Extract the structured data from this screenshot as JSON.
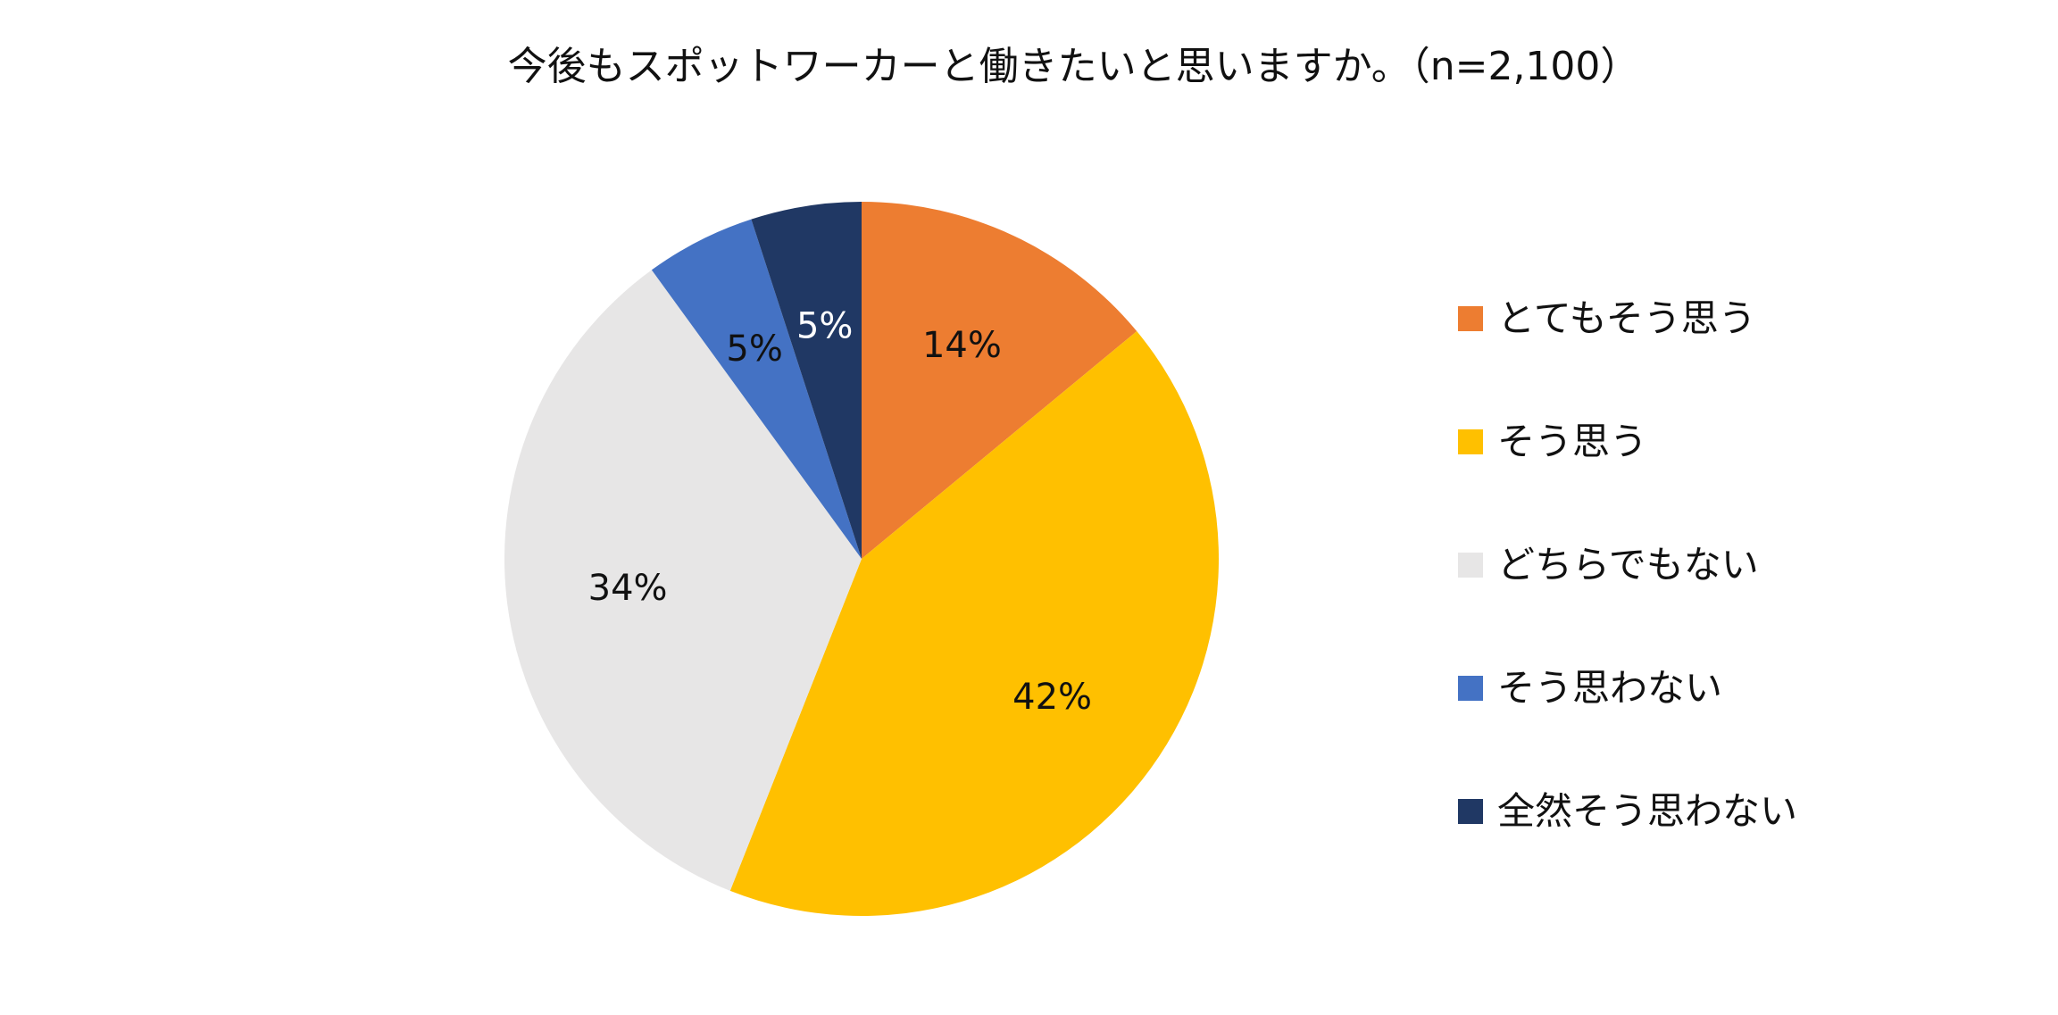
{
  "chart_data": {
    "type": "pie",
    "title": "今後もスポットワーカーと働きたいと思いますか。（n=2,100）",
    "start_angle_deg": 0,
    "direction": "clockwise",
    "legend_position": "right",
    "slices": [
      {
        "label": "とてもそう思う",
        "value": 14,
        "display": "14%",
        "color": "#ED7D31",
        "label_color": "#111111"
      },
      {
        "label": "そう思う",
        "value": 42,
        "display": "42%",
        "color": "#FFC000",
        "label_color": "#111111"
      },
      {
        "label": "どちらでもない",
        "value": 34,
        "display": "34%",
        "color": "#E7E6E6",
        "label_color": "#111111"
      },
      {
        "label": "そう思わない",
        "value": 5,
        "display": "5%",
        "color": "#4472C4",
        "label_color": "#111111"
      },
      {
        "label": "全然そう思わない",
        "value": 5,
        "display": "5%",
        "color": "#203864",
        "label_color": "#ffffff"
      }
    ]
  }
}
